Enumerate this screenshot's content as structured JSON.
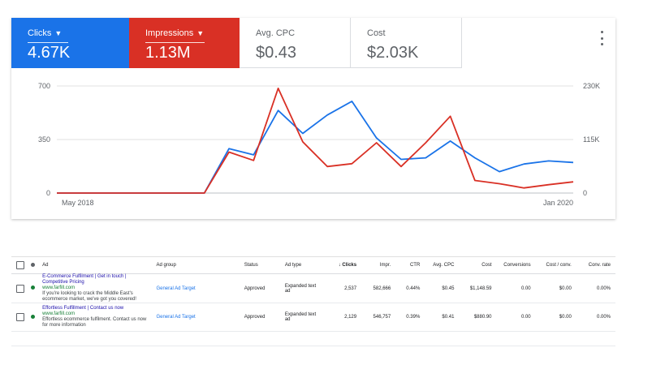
{
  "metrics": [
    {
      "label": "Clicks",
      "value": "4.67K",
      "dropdown": true,
      "color": "#1a73e8"
    },
    {
      "label": "Impressions",
      "value": "1.13M",
      "dropdown": true,
      "color": "#d93025"
    },
    {
      "label": "Avg. CPC",
      "value": "$0.43",
      "dropdown": false
    },
    {
      "label": "Cost",
      "value": "$2.03K",
      "dropdown": false
    }
  ],
  "chart_data": {
    "type": "line",
    "x_start_label": "May 2018",
    "x_end_label": "Jan 2020",
    "y_left_ticks": [
      "0",
      "350",
      "700"
    ],
    "y_right_ticks": [
      "0",
      "115K",
      "230K"
    ],
    "y_left_range": [
      0,
      700
    ],
    "y_right_range": [
      0,
      230000
    ],
    "grid": true,
    "series": [
      {
        "name": "Clicks",
        "axis": "left",
        "color": "#1a73e8",
        "values": [
          0,
          0,
          0,
          0,
          0,
          0,
          0,
          290,
          250,
          540,
          390,
          510,
          600,
          360,
          220,
          230,
          340,
          230,
          140,
          190,
          210,
          200
        ]
      },
      {
        "name": "Impressions",
        "axis": "right",
        "color": "#d93025",
        "values": [
          0,
          0,
          0,
          0,
          0,
          0,
          0,
          88000,
          70000,
          225000,
          110000,
          57000,
          63000,
          108000,
          57000,
          108000,
          165000,
          27000,
          20000,
          11000,
          18000,
          24000
        ]
      }
    ]
  },
  "table": {
    "headers": {
      "ad": "Ad",
      "ad_group": "Ad group",
      "status": "Status",
      "ad_type": "Ad type",
      "clicks": "Clicks",
      "impr": "Impr.",
      "ctr": "CTR",
      "avg_cpc": "Avg. CPC",
      "cost": "Cost",
      "conversions": "Conversions",
      "cost_conv": "Cost / conv.",
      "conv_rate": "Conv. rate"
    },
    "rows": [
      {
        "headline": "E-Commerce Fulfilment | Get in touch | Competitive Pricing",
        "url": "www.farfill.com",
        "desc": "If you're looking to crack the Middle East's ecommerce market, we've got you covered!",
        "ad_group": "General Ad Target",
        "status": "Approved",
        "ad_type": "Expanded text ad",
        "clicks": "2,537",
        "impr": "582,666",
        "ctr": "0.44%",
        "avg_cpc": "$0.45",
        "cost": "$1,148.59",
        "conversions": "0.00",
        "cost_conv": "$0.00",
        "conv_rate": "0.00%"
      },
      {
        "headline": "Effortless Fulfillment | Contact us now",
        "url": "www.farfill.com",
        "desc": "Effortless ecommerce fulfilment. Contact us now for more information",
        "ad_group": "General Ad Target",
        "status": "Approved",
        "ad_type": "Expanded text ad",
        "clicks": "2,129",
        "impr": "546,757",
        "ctr": "0.39%",
        "avg_cpc": "$0.41",
        "cost": "$880.90",
        "conversions": "0.00",
        "cost_conv": "$0.00",
        "conv_rate": "0.00%"
      }
    ]
  }
}
